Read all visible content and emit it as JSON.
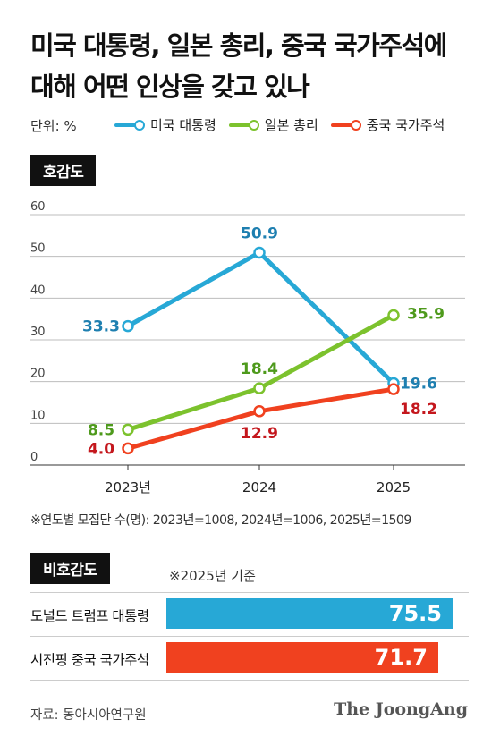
{
  "title_line1": "미국 대통령, 일본 총리, 중국 국가주석에",
  "title_line2": "대해 어떤 인상을 갖고 있나",
  "unit": "단위: %",
  "legend": [
    {
      "label": "미국 대통령",
      "color": "#27A8D6"
    },
    {
      "label": "일본 총리",
      "color": "#7CC22D"
    },
    {
      "label": "중국 국가주석",
      "color": "#F0411F"
    }
  ],
  "favorable": {
    "section_label": "호감도",
    "footnote": "※연도별 모집단 수(명): 2023년=1008, 2024년=1006, 2025년=1509"
  },
  "unfavorable": {
    "section_label": "비호감도",
    "note": "※2025년 기준",
    "bars": [
      {
        "label": "도널드 트럼프 대통령",
        "value": 75.5,
        "value_label": "75.5",
        "color": "#27A8D6"
      },
      {
        "label": "시진핑 중국 국가주석",
        "value": 71.7,
        "value_label": "71.7",
        "color": "#F0411F"
      }
    ]
  },
  "source": "자료: 동아시아연구원",
  "brand": "The JoongAng",
  "chart_data": [
    {
      "type": "line",
      "title": "호감도",
      "x": [
        "2023년",
        "2024",
        "2025"
      ],
      "ylim": [
        0,
        60
      ],
      "yticks": [
        0,
        10,
        20,
        30,
        40,
        50,
        60
      ],
      "grid": true,
      "series": [
        {
          "name": "미국 대통령",
          "color": "#27A8D6",
          "values": [
            33.3,
            50.9,
            19.6
          ],
          "labels": [
            "33.3",
            "50.9",
            "19.6"
          ],
          "label_color": "#1E7FB0"
        },
        {
          "name": "일본 총리",
          "color": "#7CC22D",
          "values": [
            8.5,
            18.4,
            35.9
          ],
          "labels": [
            "8.5",
            "18.4",
            "35.9"
          ],
          "label_color": "#4E9A1C"
        },
        {
          "name": "중국 국가주석",
          "color": "#F0411F",
          "values": [
            4.0,
            12.9,
            18.2
          ],
          "labels": [
            "4.0",
            "12.9",
            "18.2"
          ],
          "label_color": "#C4171D"
        }
      ]
    },
    {
      "type": "bar",
      "title": "비호감도",
      "orientation": "horizontal",
      "categories": [
        "도널드 트럼프 대통령",
        "시진핑 중국 국가주석"
      ],
      "values": [
        75.5,
        71.7
      ]
    }
  ]
}
